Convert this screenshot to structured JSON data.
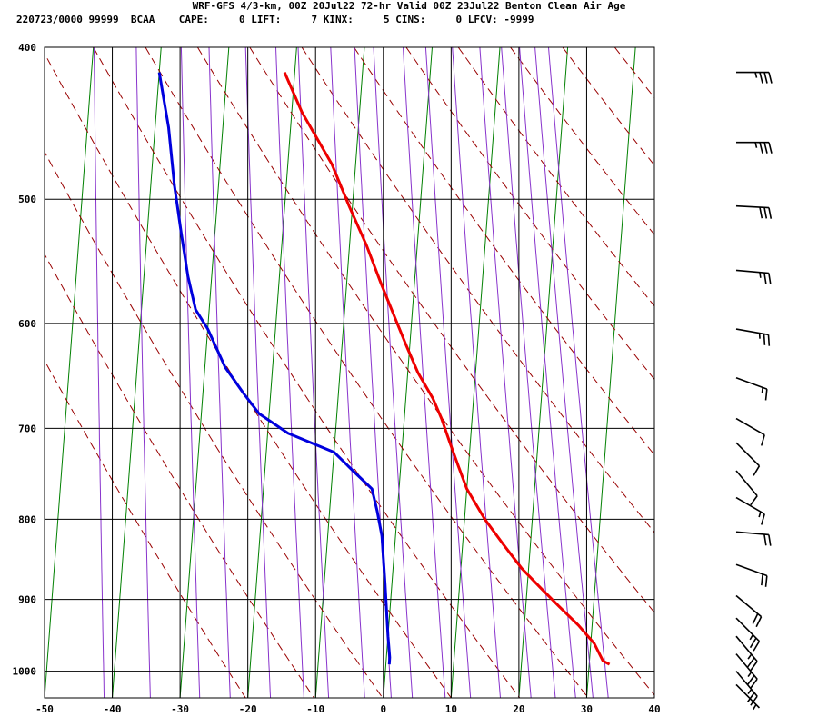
{
  "header": {
    "title": "WRF-GFS 4/3-km, 00Z 20Jul22 72-hr Valid 00Z 23Jul22 Benton Clean Air Age",
    "indices": "220723/0000 99999  BCAA    CAPE:     0 LIFT:     7 KINX:     5 CINS:     0 LFCV: -9999"
  },
  "colors": {
    "temperature": "#ee0000",
    "dewpoint": "#0000dd",
    "isotherm": "#008000",
    "dry_adiabat": "#990000",
    "mixing_ratio": "#8833cc",
    "grid": "#000000",
    "barb": "#000000"
  },
  "chart_data": {
    "type": "line",
    "title": "",
    "xlabel": "",
    "ylabel": "",
    "xlim": [
      -50,
      40
    ],
    "x_ticks": [
      -50,
      -40,
      -30,
      -20,
      -10,
      0,
      10,
      20,
      30,
      40
    ],
    "y_ticks": [
      400,
      500,
      600,
      700,
      800,
      900,
      1000
    ],
    "grid": true,
    "series": [
      {
        "key": "temperature",
        "points": [
          [
            -21.5,
            415
          ],
          [
            -18.5,
            440
          ],
          [
            -13.5,
            475
          ],
          [
            -10.5,
            505
          ],
          [
            -7.5,
            535
          ],
          [
            -5,
            565
          ],
          [
            -2.5,
            595
          ],
          [
            -0.5,
            620
          ],
          [
            1.5,
            645
          ],
          [
            4,
            670
          ],
          [
            5.5,
            690
          ],
          [
            7,
            715
          ],
          [
            8.5,
            740
          ],
          [
            10,
            765
          ],
          [
            13,
            800
          ],
          [
            16,
            830
          ],
          [
            19,
            860
          ],
          [
            22,
            885
          ],
          [
            25,
            910
          ],
          [
            28,
            935
          ],
          [
            30.5,
            960
          ],
          [
            32,
            985
          ],
          [
            33,
            990
          ]
        ]
      },
      {
        "key": "dewpoint",
        "points": [
          [
            -40,
            415
          ],
          [
            -38,
            450
          ],
          [
            -36.5,
            490
          ],
          [
            -35,
            525
          ],
          [
            -33.5,
            560
          ],
          [
            -32,
            588
          ],
          [
            -30,
            605
          ],
          [
            -27,
            640
          ],
          [
            -24,
            665
          ],
          [
            -21.5,
            685
          ],
          [
            -17,
            705
          ],
          [
            -10,
            725
          ],
          [
            -7,
            745
          ],
          [
            -4,
            765
          ],
          [
            -3,
            790
          ],
          [
            -2,
            820
          ],
          [
            -1,
            880
          ],
          [
            0,
            950
          ],
          [
            0.5,
            980
          ],
          [
            0.5,
            990
          ]
        ]
      }
    ],
    "wind_barbs": [
      {
        "pressure": 415,
        "direction": 270,
        "speed": 35
      },
      {
        "pressure": 460,
        "direction": 270,
        "speed": 35
      },
      {
        "pressure": 505,
        "direction": 273,
        "speed": 30
      },
      {
        "pressure": 555,
        "direction": 275,
        "speed": 25
      },
      {
        "pressure": 605,
        "direction": 280,
        "speed": 25
      },
      {
        "pressure": 650,
        "direction": 290,
        "speed": 15
      },
      {
        "pressure": 690,
        "direction": 300,
        "speed": 10
      },
      {
        "pressure": 715,
        "direction": 315,
        "speed": 10
      },
      {
        "pressure": 745,
        "direction": 320,
        "speed": 10
      },
      {
        "pressure": 775,
        "direction": 300,
        "speed": 15
      },
      {
        "pressure": 815,
        "direction": 275,
        "speed": 20
      },
      {
        "pressure": 855,
        "direction": 290,
        "speed": 20
      },
      {
        "pressure": 895,
        "direction": 310,
        "speed": 20
      },
      {
        "pressure": 925,
        "direction": 315,
        "speed": 25
      },
      {
        "pressure": 950,
        "direction": 320,
        "speed": 25
      },
      {
        "pressure": 975,
        "direction": 320,
        "speed": 25
      },
      {
        "pressure": 1000,
        "direction": 320,
        "speed": 25
      },
      {
        "pressure": 1020,
        "direction": 315,
        "speed": 5
      }
    ]
  }
}
